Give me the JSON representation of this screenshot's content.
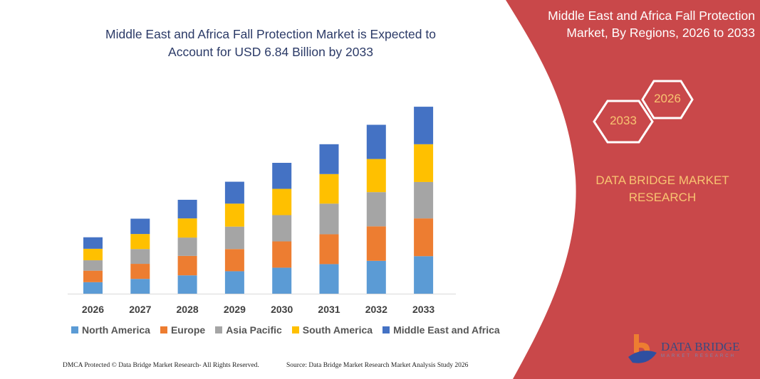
{
  "title": [
    "Middle East and Africa Fall Protection Market is Expected to",
    "Account for USD 6.84 Billion by 2033"
  ],
  "side_panel": {
    "title": [
      "Middle East and Africa Fall Protection",
      "Market, By Regions, 2026 to 2033"
    ],
    "hex_start": "2026",
    "hex_end": "2033",
    "brand": [
      "DATA BRIDGE MARKET",
      "RESEARCH"
    ],
    "logo_text": "DATA BRIDGE",
    "logo_sub": "MARKET RESEARCH",
    "color": "#c9484a"
  },
  "footer": {
    "left": "DMCA Protected © Data Bridge Market Research- All Rights Reserved.",
    "right": "Source: Data Bridge Market Research  Market Analysis Study 2026"
  },
  "chart_data": {
    "type": "bar",
    "stacked": true,
    "title": "Middle East and Africa Fall Protection Market is Expected to Account for USD 6.84 Billion by 2033",
    "categories": [
      "2026",
      "2027",
      "2028",
      "2029",
      "2030",
      "2031",
      "2032",
      "2033"
    ],
    "series": [
      {
        "name": "North America",
        "color": "#5b9bd5",
        "values": [
          0.42,
          0.54,
          0.67,
          0.82,
          0.95,
          1.08,
          1.2,
          1.37
        ]
      },
      {
        "name": "Europe",
        "color": "#ed7d31",
        "values": [
          0.42,
          0.55,
          0.71,
          0.81,
          0.96,
          1.09,
          1.26,
          1.38
        ]
      },
      {
        "name": "Asia Pacific",
        "color": "#a5a5a5",
        "values": [
          0.38,
          0.54,
          0.67,
          0.82,
          0.96,
          1.12,
          1.25,
          1.33
        ]
      },
      {
        "name": "South America",
        "color": "#ffc000",
        "values": [
          0.42,
          0.55,
          0.7,
          0.84,
          0.96,
          1.08,
          1.21,
          1.38
        ]
      },
      {
        "name": "Middle East and Africa",
        "color": "#4472c4",
        "values": [
          0.42,
          0.56,
          0.68,
          0.8,
          0.95,
          1.09,
          1.25,
          1.37
        ]
      }
    ],
    "ylim": [
      0,
      7
    ],
    "y_axis_shown": false,
    "grid": false,
    "legend_position": "bottom"
  }
}
